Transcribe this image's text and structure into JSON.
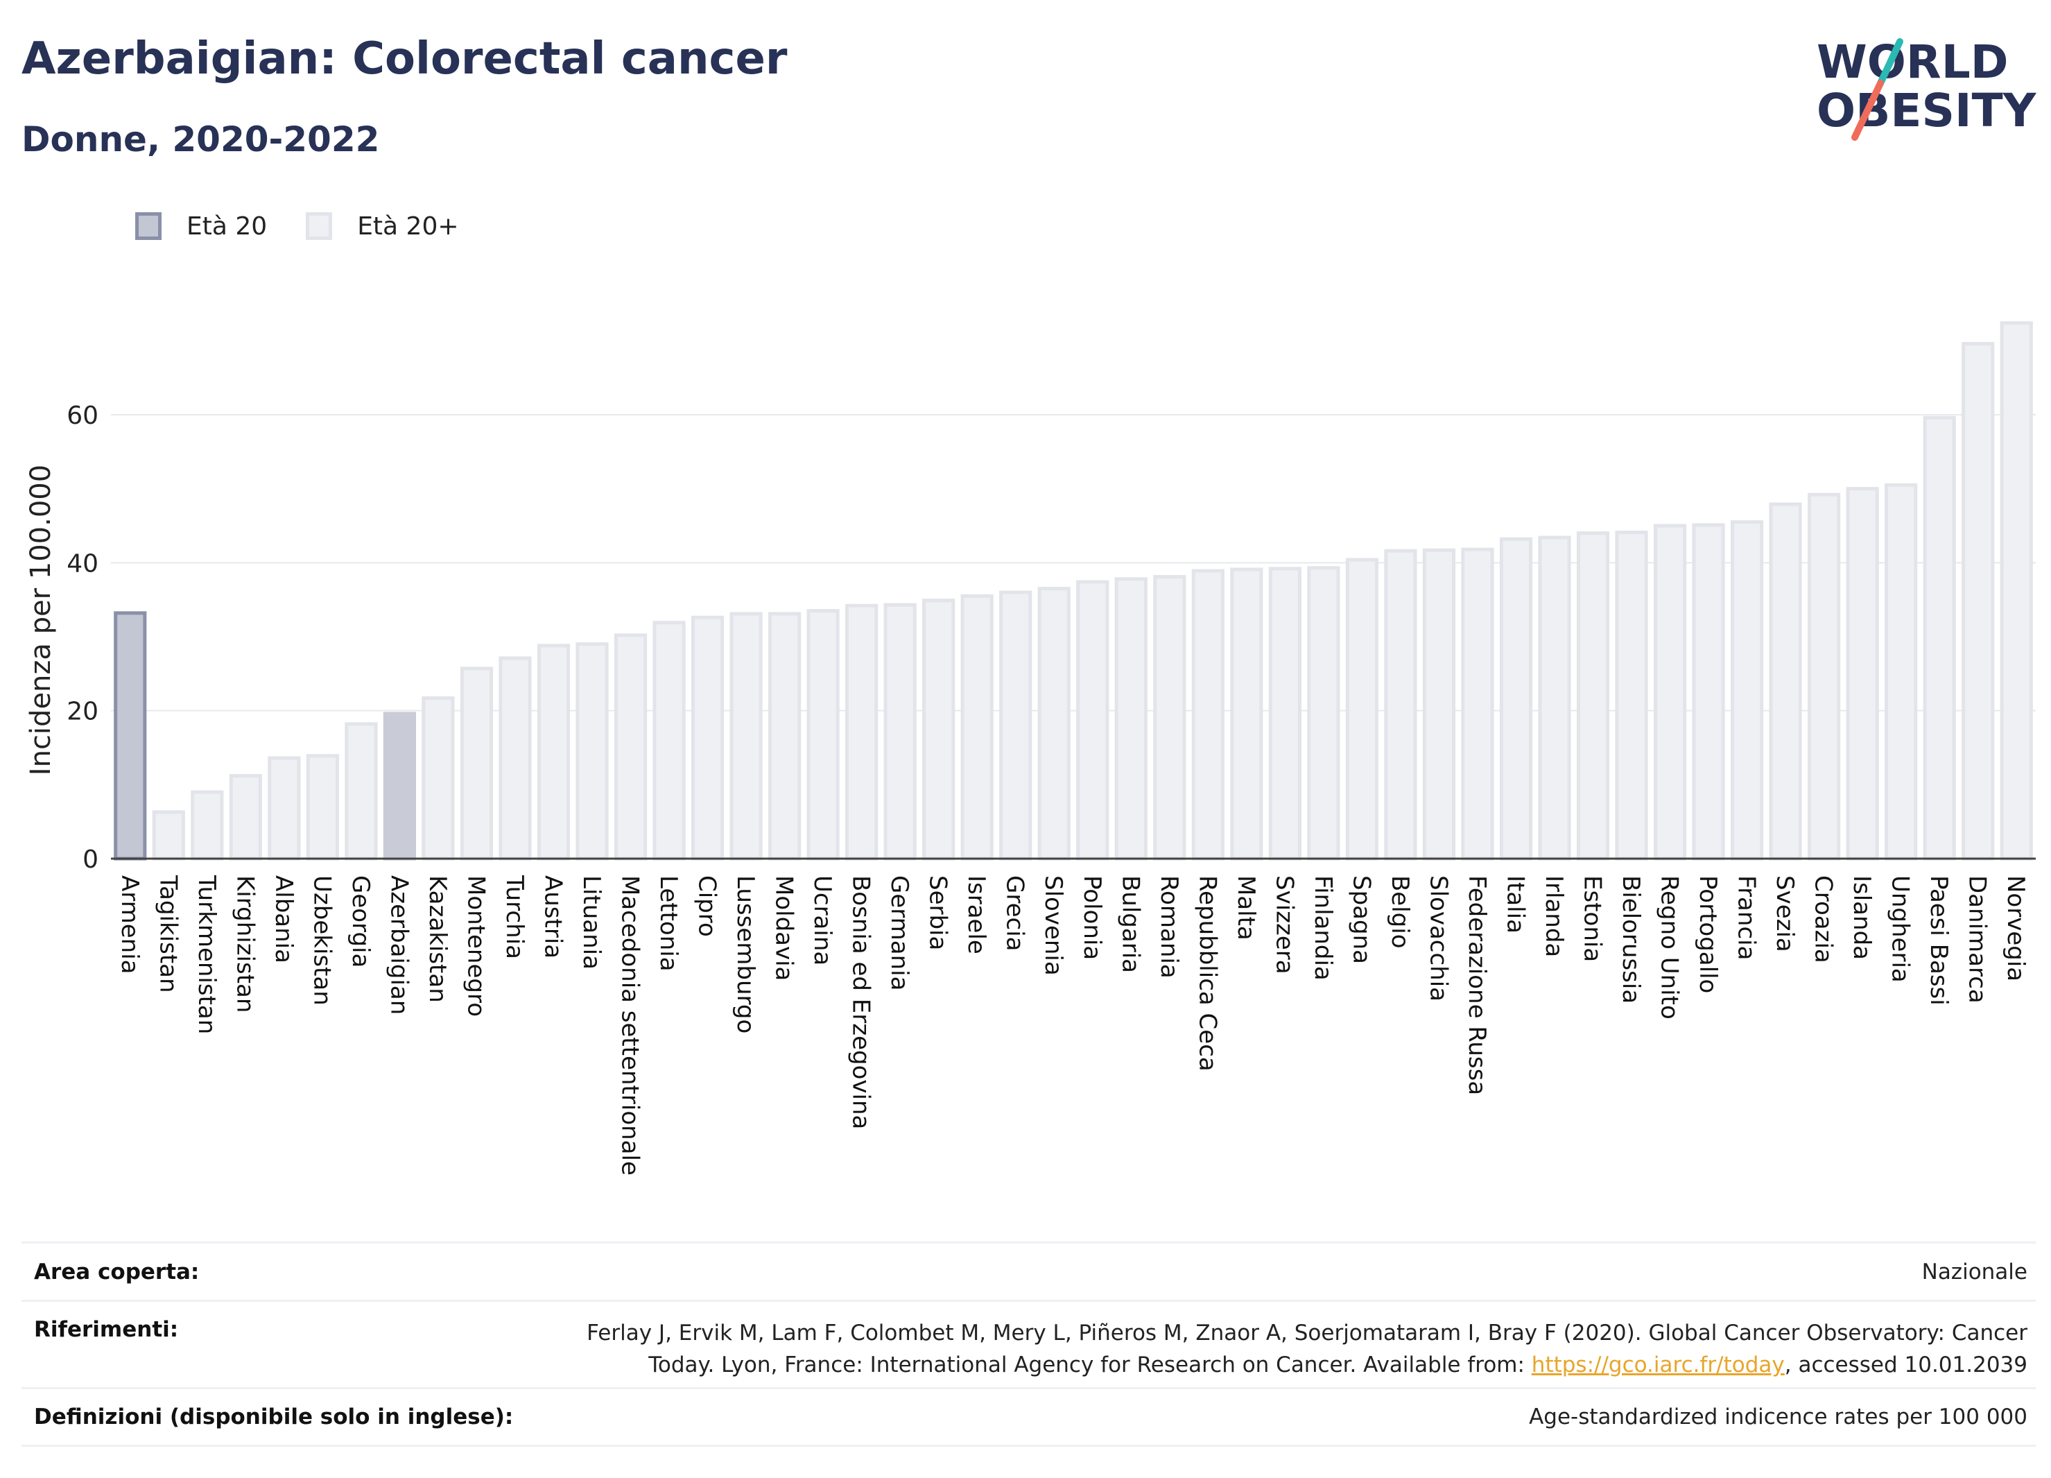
{
  "header": {
    "title": "Azerbaigian: Colorectal cancer",
    "subtitle": "Donne, 2020-2022"
  },
  "logo": {
    "line1": "WORLD",
    "line2": "OBESITY",
    "colors": {
      "text": "#283156",
      "slash_teal": "#2bb9b4",
      "slash_coral": "#ef6c5a"
    }
  },
  "legend": {
    "items": [
      {
        "label": "Età 20",
        "fill": "#c3c6d3",
        "stroke": "#8a90a8"
      },
      {
        "label": "Età 20+",
        "fill": "#eff0f4",
        "stroke": "#e2e4ea"
      }
    ]
  },
  "chart_data": {
    "type": "bar",
    "ylabel": "Incidenza per 100.000",
    "xlabel": "",
    "ylim": [
      0,
      72
    ],
    "yticks": [
      0,
      20,
      40,
      60
    ],
    "grid": true,
    "highlight": "Azerbaigian",
    "colors": {
      "first_fill": "#c3c6d3",
      "first_stroke": "#8a90a8",
      "highlight_fill": "#c9cbd6",
      "highlight_stroke": "#c9cbd6",
      "bar_fill": "#eff0f4",
      "bar_stroke": "#e2e4ea",
      "grid": "#e8e9ee",
      "axis": "#444444"
    },
    "categories": [
      "Armenia",
      "Tagikistan",
      "Turkmenistan",
      "Kirghizistan",
      "Albania",
      "Uzbekistan",
      "Georgia",
      "Azerbaigian",
      "Kazakistan",
      "Montenegro",
      "Turchia",
      "Austria",
      "Lituania",
      "Macedonia settentrionale",
      "Lettonia",
      "Cipro",
      "Lussemburgo",
      "Moldavia",
      "Ucraina",
      "Bosnia ed Erzegovina",
      "Germania",
      "Serbia",
      "Israele",
      "Grecia",
      "Slovenia",
      "Polonia",
      "Bulgaria",
      "Romania",
      "Repubblica Ceca",
      "Malta",
      "Svizzera",
      "Finlandia",
      "Spagna",
      "Belgio",
      "Slovacchia",
      "Federazione Russa",
      "Italia",
      "Irlanda",
      "Estonia",
      "Bielorussia",
      "Regno Unito",
      "Portogallo",
      "Francia",
      "Svezia",
      "Croazia",
      "Islanda",
      "Ungheria",
      "Paesi Bassi",
      "Danimarca",
      "Norvegia"
    ],
    "values": [
      33.2,
      6.3,
      9.0,
      11.2,
      13.6,
      13.9,
      18.2,
      19.6,
      21.7,
      25.7,
      27.1,
      28.8,
      29.0,
      30.2,
      31.9,
      32.6,
      33.1,
      33.1,
      33.5,
      34.2,
      34.3,
      34.9,
      35.5,
      36.0,
      36.5,
      37.4,
      37.8,
      38.1,
      38.9,
      39.1,
      39.2,
      39.3,
      40.4,
      41.6,
      41.7,
      41.8,
      43.2,
      43.4,
      44.0,
      44.1,
      45.0,
      45.1,
      45.5,
      47.9,
      49.2,
      50.0,
      50.5,
      59.6,
      69.6,
      72.4
    ]
  },
  "footer": {
    "rows": [
      {
        "label": "Area coperta:",
        "value": "Nazionale"
      },
      {
        "label": "Riferimenti:",
        "value_before": "Ferlay J, Ervik M, Lam F, Colombet M, Mery L, Piñeros M, Znaor A, Soerjomataram I, Bray F (2020). Global Cancer Observatory: Cancer Today. Lyon, France: International Agency for Research on Cancer. Available from: ",
        "link": "https://gco.iarc.fr/today",
        "value_after": ", accessed 10.01.2039"
      },
      {
        "label": "Definizioni (disponibile solo in inglese):",
        "value": "Age-standardized indicence rates per 100 000"
      }
    ]
  }
}
